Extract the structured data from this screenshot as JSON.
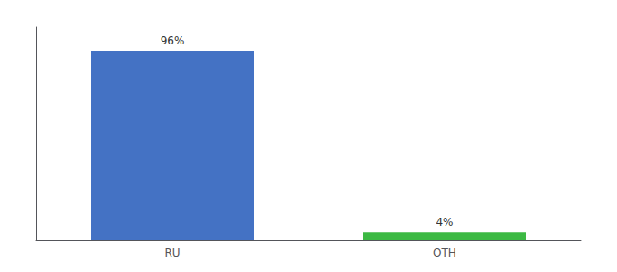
{
  "chart_data": {
    "type": "bar",
    "categories": [
      "RU",
      "OTH"
    ],
    "values": [
      96,
      4
    ],
    "value_labels": [
      "96%",
      "4%"
    ],
    "colors": [
      "#4472c4",
      "#3cb943"
    ],
    "ylim": [
      0,
      108
    ],
    "tick_labels": "x",
    "data_labels": true,
    "grid": false
  }
}
